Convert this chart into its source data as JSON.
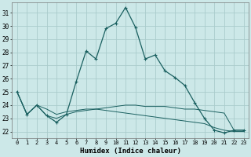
{
  "xlabel": "Humidex (Indice chaleur)",
  "bg_color": "#cce8e8",
  "grid_color": "#aacccc",
  "line_color": "#1a6060",
  "xlim": [
    -0.5,
    23.5
  ],
  "ylim": [
    21.5,
    31.8
  ],
  "yticks": [
    22,
    23,
    24,
    25,
    26,
    27,
    28,
    29,
    30,
    31
  ],
  "xticks": [
    0,
    1,
    2,
    3,
    4,
    5,
    6,
    7,
    8,
    9,
    10,
    11,
    12,
    13,
    14,
    15,
    16,
    17,
    18,
    19,
    20,
    21,
    22,
    23
  ],
  "series": [
    [
      25.0,
      23.3,
      24.0,
      23.2,
      22.7,
      23.3,
      25.8,
      28.1,
      27.5,
      29.8,
      30.2,
      31.4,
      29.9,
      27.5,
      27.8,
      26.6,
      26.1,
      25.5,
      24.2,
      23.0,
      22.1,
      21.9,
      22.1,
      22.1
    ],
    [
      25.0,
      23.3,
      24.0,
      23.2,
      23.0,
      23.3,
      23.5,
      23.6,
      23.7,
      23.8,
      23.9,
      24.0,
      24.0,
      23.9,
      23.9,
      23.9,
      23.8,
      23.7,
      23.7,
      23.6,
      23.5,
      23.4,
      22.1,
      22.1
    ],
    [
      25.0,
      23.3,
      24.0,
      23.7,
      23.3,
      23.5,
      23.6,
      23.7,
      23.7,
      23.6,
      23.5,
      23.4,
      23.3,
      23.2,
      23.1,
      23.0,
      22.9,
      22.8,
      22.7,
      22.6,
      22.3,
      22.1,
      22.0,
      22.0
    ]
  ],
  "xtick_fontsize": 5.0,
  "ytick_fontsize": 5.5,
  "xlabel_fontsize": 6.5,
  "linewidth_main": 0.9,
  "linewidth_other": 0.7,
  "marker_size": 3.0
}
